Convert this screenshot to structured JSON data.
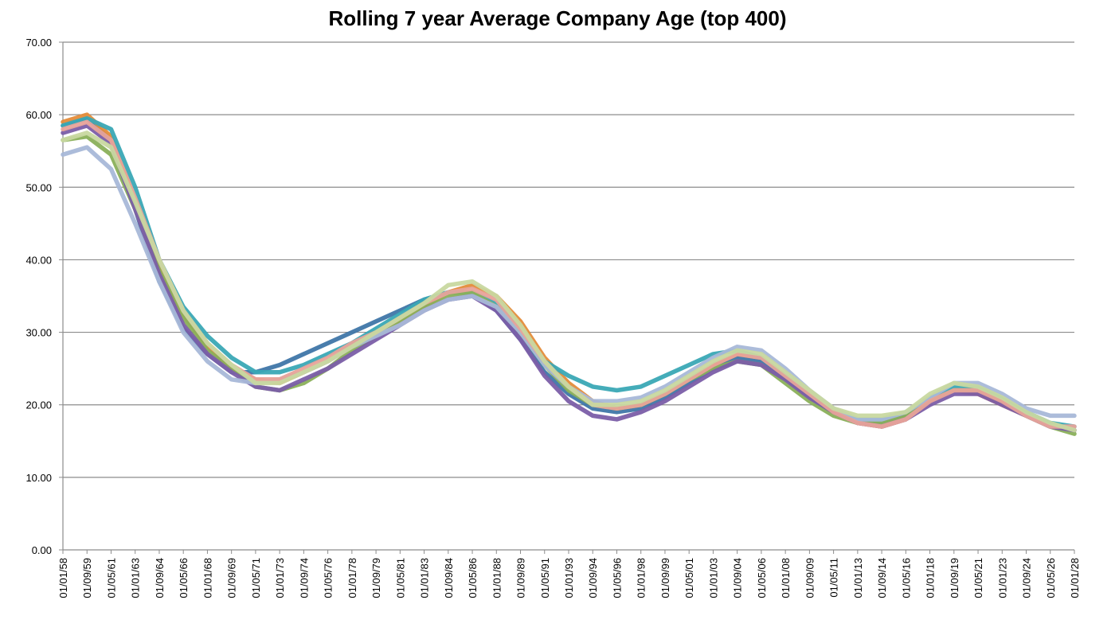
{
  "chart_data": {
    "type": "line",
    "title": "Rolling 7 year Average Company Age (top 400)",
    "xlabel": "",
    "ylabel": "",
    "ylim": [
      0,
      70
    ],
    "yticks": [
      "0.00",
      "10.00",
      "20.00",
      "30.00",
      "40.00",
      "50.00",
      "60.00",
      "70.00"
    ],
    "grid": "horizontal",
    "legend": "none",
    "categories": [
      "01/01/58",
      "01/09/59",
      "01/05/61",
      "01/01/63",
      "01/09/64",
      "01/05/66",
      "01/01/68",
      "01/09/69",
      "01/05/71",
      "01/01/73",
      "01/09/74",
      "01/05/76",
      "01/01/78",
      "01/09/79",
      "01/05/81",
      "01/01/83",
      "01/09/84",
      "01/05/86",
      "01/01/88",
      "01/09/89",
      "01/05/91",
      "01/01/93",
      "01/09/94",
      "01/05/96",
      "01/01/98",
      "01/09/99",
      "01/05/01",
      "01/01/03",
      "01/09/04",
      "01/05/06",
      "01/01/08",
      "01/09/09",
      "01/05/11",
      "01/01/13",
      "01/09/14",
      "01/05/16",
      "01/01/18",
      "01/09/19",
      "01/05/21",
      "01/01/23",
      "01/09/24",
      "01/05/26",
      "01/01/28"
    ],
    "series": [
      {
        "color": "#3f76a8",
        "values": [
          58.5,
          59.5,
          56.5,
          47,
          37,
          30.5,
          27,
          24.5,
          24.5,
          25.5,
          27,
          28.5,
          30,
          31.5,
          33,
          34.5,
          35.5,
          35.5,
          33,
          29,
          24.5,
          21.5,
          19.5,
          19,
          19.5,
          21,
          23,
          25,
          26.5,
          26,
          23.5,
          21,
          19,
          17.5,
          17.5,
          18.5,
          20.5,
          22,
          22,
          20.5,
          18.5,
          17,
          16.5
        ]
      },
      {
        "color": "#e48c3a",
        "values": [
          59,
          60,
          57,
          48,
          39,
          32.5,
          28,
          25,
          23.5,
          23,
          24.5,
          26,
          28,
          30,
          31.5,
          33.5,
          35.5,
          36.5,
          35,
          31.5,
          26.5,
          23,
          20.5,
          19.5,
          20,
          21.5,
          23.5,
          25.5,
          27,
          26.5,
          24,
          21.5,
          19,
          17.5,
          17,
          18,
          20.5,
          22,
          21.5,
          20,
          18.5,
          17,
          16.5
        ]
      },
      {
        "color": "#3aa8b5",
        "values": [
          58.5,
          59.5,
          58,
          50,
          40,
          33.5,
          29.5,
          26.5,
          24.5,
          24.5,
          25.5,
          27,
          28.5,
          30.5,
          32.5,
          34.5,
          35.5,
          35.5,
          34,
          30.5,
          26,
          24,
          22.5,
          22,
          22.5,
          24,
          25.5,
          27,
          27.5,
          26.5,
          24,
          21.5,
          19.5,
          18,
          18,
          19,
          21,
          22.5,
          22.5,
          21,
          19,
          17.5,
          17
        ]
      },
      {
        "color": "#8ab05a",
        "values": [
          56.5,
          57,
          54.5,
          47,
          38.5,
          32,
          27.5,
          25,
          22.5,
          22,
          23,
          25,
          27.5,
          29.5,
          31.5,
          33.5,
          35,
          35.5,
          33.5,
          30,
          25.5,
          22,
          20,
          19.5,
          20,
          21.5,
          23.5,
          25,
          26,
          25.5,
          23,
          20.5,
          18.5,
          17.5,
          17.5,
          18.5,
          20.5,
          22,
          22,
          20.5,
          18.5,
          17,
          16
        ]
      },
      {
        "color": "#7b5ea8",
        "values": [
          57.5,
          58.5,
          56,
          47,
          38,
          31,
          27,
          24.5,
          22.5,
          22,
          23.5,
          25,
          27,
          29,
          31,
          33,
          34.5,
          35,
          33,
          29,
          24,
          20.5,
          18.5,
          18,
          19,
          20.5,
          22.5,
          24.5,
          26,
          25.5,
          23.5,
          21,
          19,
          17.5,
          17,
          18,
          20,
          21.5,
          21.5,
          20,
          18.5,
          17,
          16.5
        ]
      },
      {
        "color": "#a8b8d8",
        "values": [
          54.5,
          55.5,
          52.5,
          45,
          37,
          30,
          26,
          23.5,
          23,
          23.5,
          24.5,
          26,
          28,
          29.5,
          31,
          33,
          34.5,
          35,
          33.5,
          30,
          25.5,
          22.5,
          20.5,
          20.5,
          21,
          22.5,
          24.5,
          26.5,
          28,
          27.5,
          25,
          22,
          19.5,
          18,
          18,
          19,
          21,
          23,
          23,
          21.5,
          19.5,
          18.5,
          18.5
        ]
      },
      {
        "color": "#e8a39a",
        "values": [
          58,
          59,
          56.5,
          48.5,
          40,
          33,
          28.5,
          25.5,
          23.5,
          23.5,
          25,
          26.5,
          28.5,
          30,
          32,
          34,
          35.5,
          36,
          34.5,
          30.5,
          26,
          22.5,
          20,
          19.5,
          20,
          21.5,
          23.5,
          25.5,
          27,
          26.5,
          24,
          21.5,
          19,
          17.5,
          17,
          18,
          20.5,
          22,
          22,
          20.5,
          18.5,
          17,
          17
        ]
      },
      {
        "color": "#c8d8a0",
        "values": [
          56.5,
          57.5,
          55.5,
          48,
          40,
          33,
          28.5,
          25.5,
          23,
          23,
          24.5,
          26,
          28,
          30,
          32,
          34,
          36.5,
          37,
          35,
          31,
          26,
          22.5,
          20,
          20,
          20.5,
          22,
          24,
          26,
          27.5,
          27,
          24.5,
          22,
          19.5,
          18.5,
          18.5,
          19,
          21.5,
          23,
          22.5,
          21,
          19,
          17.5,
          16.5
        ]
      }
    ]
  }
}
